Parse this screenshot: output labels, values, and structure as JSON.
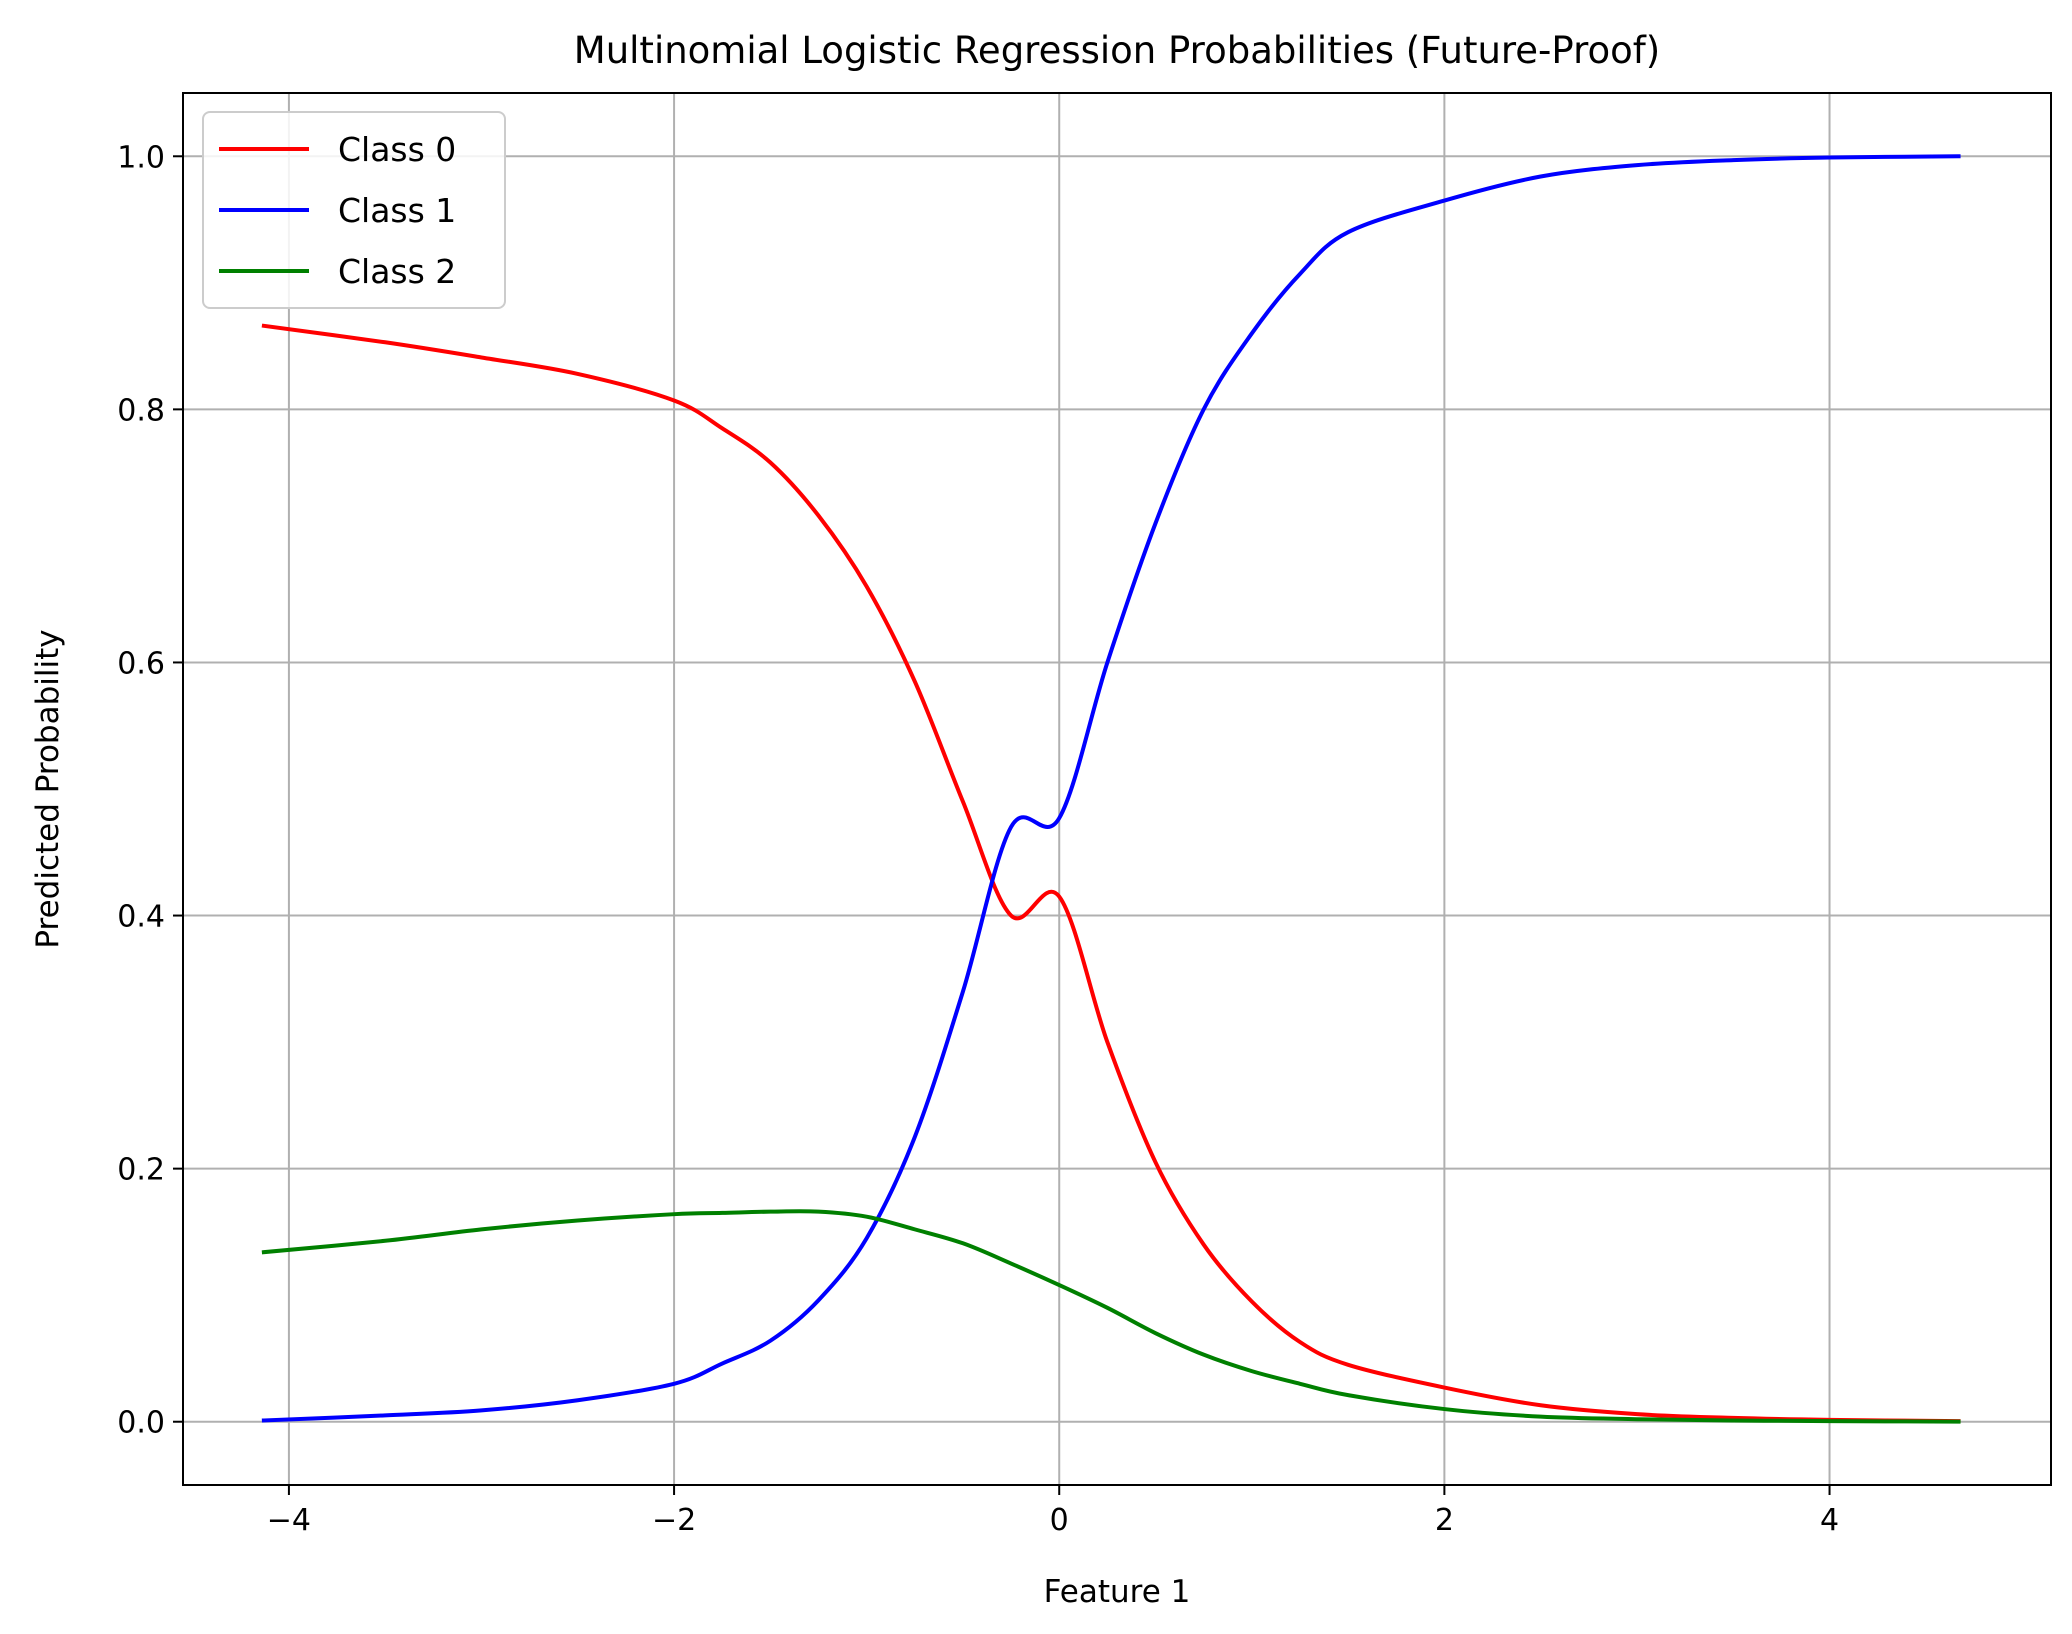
{
  "chart_data": {
    "type": "line",
    "title": "Multinomial Logistic Regression Probabilities (Future-Proof)",
    "xlabel": "Feature 1",
    "ylabel": "Predicted Probability",
    "xlim": [
      -4.55,
      5.15
    ],
    "ylim": [
      -0.05,
      1.05
    ],
    "xticks": [
      -4,
      -2,
      0,
      2,
      4
    ],
    "xtick_labels": [
      "−4",
      "−2",
      "0",
      "2",
      "4"
    ],
    "yticks": [
      0.0,
      0.2,
      0.4,
      0.6,
      0.8,
      1.0
    ],
    "ytick_labels": [
      "0.0",
      "0.2",
      "0.4",
      "0.6",
      "0.8",
      "1.0"
    ],
    "grid": true,
    "legend_position": "top-left",
    "x": [
      -4.13,
      -3.5,
      -3.0,
      -2.5,
      -2.0,
      -1.75,
      -1.5,
      -1.25,
      -1.0,
      -0.75,
      -0.5,
      -0.25,
      0.0,
      0.25,
      0.5,
      0.75,
      1.0,
      1.25,
      1.5,
      2.0,
      2.5,
      3.0,
      3.5,
      4.0,
      4.67
    ],
    "series": [
      {
        "name": "Class 0",
        "color": "#ff0000",
        "values": [
          0.866,
          0.853,
          0.841,
          0.828,
          0.807,
          0.785,
          0.758,
          0.716,
          0.66,
          0.585,
          0.49,
          0.4,
          0.415,
          0.3,
          0.205,
          0.14,
          0.095,
          0.063,
          0.045,
          0.027,
          0.013,
          0.006,
          0.003,
          0.0015,
          0.0005
        ]
      },
      {
        "name": "Class 1",
        "color": "#0000ff",
        "values": [
          0.001,
          0.005,
          0.009,
          0.017,
          0.03,
          0.046,
          0.064,
          0.096,
          0.145,
          0.225,
          0.34,
          0.47,
          0.477,
          0.6,
          0.71,
          0.8,
          0.86,
          0.907,
          0.94,
          0.965,
          0.984,
          0.993,
          0.997,
          0.999,
          1.0
        ]
      },
      {
        "name": "Class 2",
        "color": "#008000",
        "values": [
          0.134,
          0.143,
          0.152,
          0.159,
          0.164,
          0.165,
          0.166,
          0.166,
          0.162,
          0.152,
          0.141,
          0.125,
          0.108,
          0.09,
          0.07,
          0.053,
          0.04,
          0.03,
          0.021,
          0.01,
          0.004,
          0.002,
          0.001,
          0.0005,
          0.0001
        ]
      }
    ]
  }
}
